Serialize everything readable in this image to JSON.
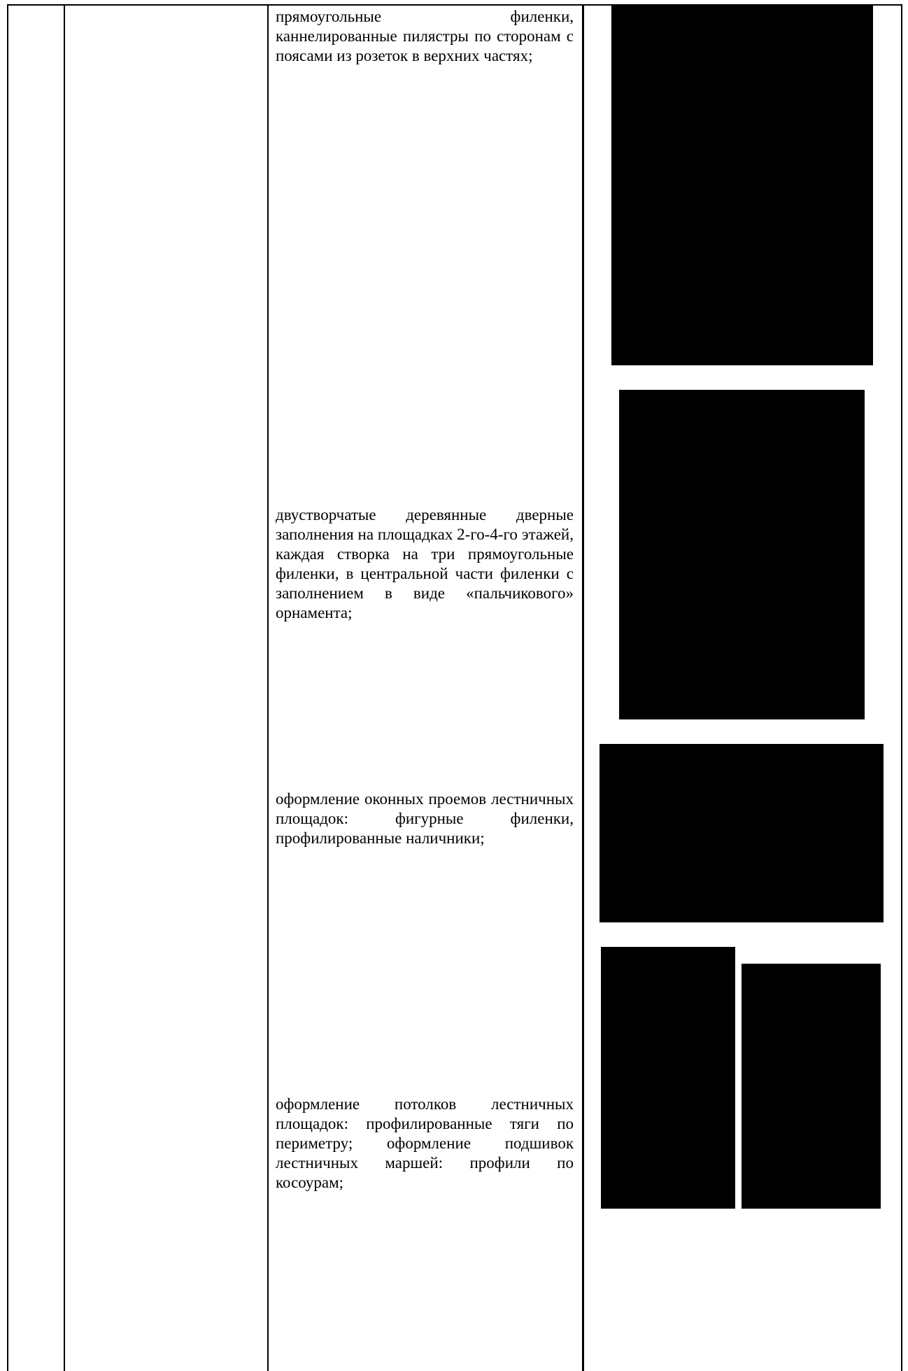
{
  "table": {
    "rows": [
      {
        "text": "прямоугольные филенки, каннелированные пилястры по сторонам с поясами из розеток в верхних частях;"
      },
      {
        "text": "двустворчатые деревянные дверные заполнения на площадках 2-го-4-го этажей, каждая створка на три прямоугольные филенки, в центральной части филенки с заполнением в виде «пальчикового» орнамента;"
      },
      {
        "text": "оформление оконных проемов лестничных площадок: фигурные филенки, профилированные наличники;"
      },
      {
        "text": "оформление потолков лестничных площадок: профилированные тяги по периметру; оформление подшивок лестничных маршей: профили по косоурам;"
      }
    ]
  }
}
